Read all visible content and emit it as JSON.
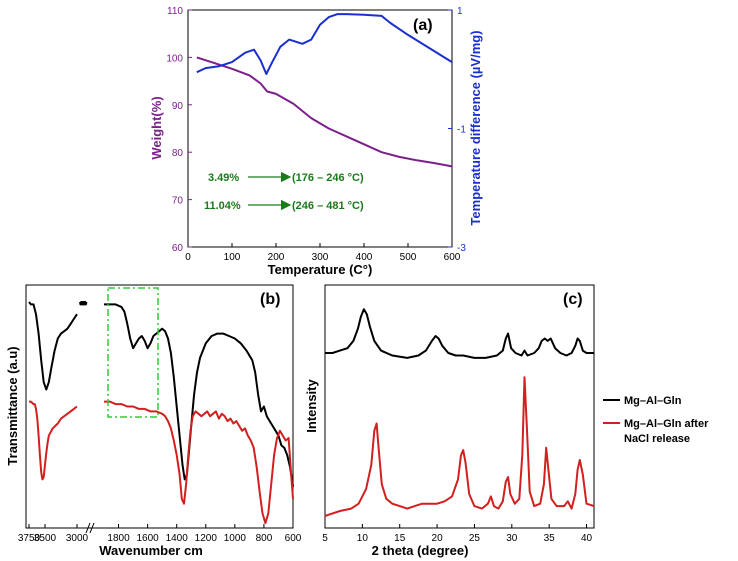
{
  "colors": {
    "purple": "#7b1f8a",
    "blue": "#1a2fd0",
    "green": "#1a7a1a",
    "dash": "#33cc33",
    "black": "#000000",
    "red": "#d21f1f"
  },
  "panel_a": {
    "label": "(a)",
    "xlabel": "Temperature (C°)",
    "ylabel_left": "Weight(%)",
    "ylabel_right": "Temperature difference (µV/mg)",
    "annotations": [
      {
        "pct": "3.49%",
        "range": "(176 – 246 °C)"
      },
      {
        "pct": "11.04%",
        "range": "(246 –  481 °C)"
      }
    ]
  },
  "panel_b": {
    "label": "(b)",
    "xlabel": "Wavenumber cm",
    "ylabel": "Transmittance (a.u)"
  },
  "panel_c": {
    "label": "(c)",
    "xlabel": "2 theta (degree)",
    "ylabel": "Intensity"
  },
  "legend": {
    "items": [
      {
        "label": "Mg–Al–Gln",
        "color": "#000000"
      },
      {
        "label": "Mg–Al–Gln after NaCl release",
        "color": "#d21f1f"
      }
    ]
  },
  "chart_data": [
    {
      "panel": "a",
      "type": "line",
      "xlim": [
        0,
        600
      ],
      "ylim_left": [
        60,
        110
      ],
      "ylim_right": [
        -3,
        1
      ],
      "xticks": [
        0,
        100,
        200,
        300,
        400,
        500,
        600
      ],
      "yticks_left": [
        60,
        70,
        80,
        90,
        100,
        110
      ],
      "yticks_right": [
        -3,
        -1,
        1
      ],
      "series": [
        {
          "axis": "left",
          "color": "#7b1f8a",
          "x": [
            20,
            60,
            100,
            140,
            165,
            180,
            200,
            240,
            280,
            320,
            380,
            440,
            480,
            520,
            560,
            600
          ],
          "y": [
            100,
            98.8,
            97.6,
            96.2,
            94.5,
            92.8,
            92.3,
            90.2,
            87.2,
            85,
            82.5,
            80,
            79,
            78.3,
            77.7,
            77
          ]
        },
        {
          "axis": "right",
          "color": "#1a2fd0",
          "x": [
            20,
            40,
            70,
            100,
            130,
            150,
            165,
            178,
            190,
            210,
            230,
            260,
            280,
            300,
            320,
            340,
            360,
            400,
            440,
            460,
            500,
            550,
            600
          ],
          "y": [
            -0.05,
            0.02,
            0.05,
            0.12,
            0.28,
            0.33,
            0.15,
            -0.08,
            0.1,
            0.38,
            0.5,
            0.43,
            0.5,
            0.75,
            0.88,
            0.93,
            0.93,
            0.92,
            0.9,
            0.78,
            0.58,
            0.35,
            0.12
          ]
        }
      ]
    },
    {
      "panel": "b",
      "type": "line",
      "xticks": [
        "3750",
        "3500",
        "3000",
        "1800",
        "1600",
        "1400",
        "1200",
        "1000",
        "800",
        "600"
      ],
      "series": [
        {
          "name": "Mg–Al–Gln",
          "color": "#000000",
          "segments": [
            {
              "x": [
                3750,
                3720,
                3680,
                3640,
                3600,
                3560,
                3520,
                3480,
                3440,
                3400,
                3350,
                3300,
                3250,
                3200,
                3150,
                3100,
                3050,
                3000
              ],
              "y": [
                0.93,
                0.92,
                0.92,
                0.88,
                0.8,
                0.69,
                0.6,
                0.57,
                0.6,
                0.66,
                0.73,
                0.78,
                0.8,
                0.81,
                0.82,
                0.84,
                0.86,
                0.88
              ]
            },
            {
              "x": [
                2800,
                2780,
                2760,
                2740,
                2720,
                2700,
                2680,
                2660,
                2640,
                2620,
                2600,
                2580,
                2560
              ],
              "y": [
                0.93,
                0.92,
                0.93,
                0.92,
                0.93,
                0.92,
                0.93,
                0.92,
                0.93,
                0.92,
                0.93,
                0.92,
                0.93
              ]
            },
            {
              "x": [
                1900,
                1860,
                1820,
                1780,
                1760,
                1740,
                1720,
                1700,
                1680,
                1660,
                1640,
                1620,
                1600,
                1580,
                1560,
                1540,
                1520,
                1500,
                1480,
                1460,
                1440,
                1420,
                1400,
                1380,
                1360,
                1345,
                1330,
                1315,
                1300,
                1280,
                1260,
                1240,
                1200,
                1160,
                1120,
                1080,
                1040,
                1000,
                960,
                920,
                880,
                860,
                840,
                820,
                800,
                780,
                760,
                740,
                720,
                700,
                680,
                660,
                640,
                620,
                600
              ],
              "y": [
                0.92,
                0.92,
                0.92,
                0.91,
                0.89,
                0.84,
                0.78,
                0.74,
                0.76,
                0.78,
                0.79,
                0.77,
                0.74,
                0.76,
                0.79,
                0.8,
                0.81,
                0.82,
                0.81,
                0.78,
                0.72,
                0.62,
                0.5,
                0.38,
                0.26,
                0.2,
                0.22,
                0.32,
                0.42,
                0.55,
                0.64,
                0.7,
                0.76,
                0.79,
                0.8,
                0.8,
                0.79,
                0.78,
                0.76,
                0.73,
                0.69,
                0.64,
                0.55,
                0.48,
                0.5,
                0.46,
                0.44,
                0.42,
                0.4,
                0.38,
                0.34,
                0.33,
                0.3,
                0.25,
                0.17
              ]
            }
          ]
        },
        {
          "name": "Mg–Al–Gln after NaCl release",
          "color": "#d21f1f",
          "segments": [
            {
              "x": [
                3750,
                3720,
                3680,
                3660,
                3640,
                3620,
                3600,
                3580,
                3560,
                3540,
                3520,
                3500,
                3480,
                3460,
                3440,
                3420,
                3380,
                3340,
                3300,
                3250,
                3200,
                3150,
                3100,
                3050,
                3000
              ],
              "y": [
                0.52,
                0.52,
                0.51,
                0.51,
                0.49,
                0.45,
                0.38,
                0.3,
                0.23,
                0.2,
                0.21,
                0.26,
                0.31,
                0.35,
                0.38,
                0.39,
                0.41,
                0.42,
                0.43,
                0.45,
                0.46,
                0.47,
                0.48,
                0.49,
                0.5
              ]
            },
            {
              "x": [
                1900,
                1860,
                1820,
                1780,
                1740,
                1700,
                1660,
                1620,
                1580,
                1540,
                1500,
                1480,
                1460,
                1440,
                1420,
                1400,
                1380,
                1365,
                1350,
                1335,
                1320,
                1305,
                1290,
                1270,
                1250,
                1230,
                1210,
                1190,
                1170,
                1150,
                1130,
                1110,
                1090,
                1070,
                1050,
                1030,
                1010,
                990,
                970,
                950,
                930,
                910,
                890,
                870,
                850,
                830,
                810,
                790,
                770,
                750,
                730,
                710,
                690,
                670,
                650,
                630,
                610,
                600
              ],
              "y": [
                0.52,
                0.52,
                0.51,
                0.51,
                0.5,
                0.5,
                0.49,
                0.49,
                0.48,
                0.48,
                0.47,
                0.46,
                0.44,
                0.41,
                0.36,
                0.3,
                0.22,
                0.12,
                0.1,
                0.18,
                0.3,
                0.4,
                0.46,
                0.48,
                0.47,
                0.46,
                0.47,
                0.48,
                0.46,
                0.47,
                0.48,
                0.45,
                0.47,
                0.46,
                0.44,
                0.45,
                0.43,
                0.44,
                0.42,
                0.4,
                0.41,
                0.38,
                0.36,
                0.33,
                0.25,
                0.15,
                0.06,
                0.02,
                0.06,
                0.18,
                0.3,
                0.37,
                0.4,
                0.38,
                0.36,
                0.37,
                0.2,
                0.12
              ]
            }
          ]
        }
      ]
    },
    {
      "panel": "c",
      "type": "line",
      "xlim": [
        5,
        41
      ],
      "xticks": [
        5,
        10,
        15,
        20,
        25,
        30,
        35,
        40
      ],
      "series": [
        {
          "name": "Mg–Al–Gln",
          "color": "#000000",
          "x": [
            5,
            6,
            7,
            8,
            8.8,
            9.4,
            9.8,
            10.2,
            10.6,
            11,
            11.6,
            12.5,
            14,
            16,
            17.5,
            18.5,
            19.3,
            19.8,
            20.2,
            20.7,
            21.5,
            22.5,
            23.5,
            25,
            26.5,
            28,
            28.8,
            29.2,
            29.5,
            29.9,
            30.5,
            31.3,
            31.7,
            32.1,
            33,
            33.6,
            34,
            34.4,
            34.8,
            35.2,
            35.8,
            36.5,
            37.3,
            38,
            38.5,
            38.8,
            39.1,
            39.5,
            40,
            41
          ],
          "y": [
            0.72,
            0.72,
            0.73,
            0.74,
            0.77,
            0.82,
            0.87,
            0.9,
            0.88,
            0.83,
            0.77,
            0.73,
            0.71,
            0.7,
            0.71,
            0.73,
            0.77,
            0.79,
            0.78,
            0.75,
            0.72,
            0.71,
            0.71,
            0.7,
            0.7,
            0.71,
            0.73,
            0.78,
            0.8,
            0.74,
            0.72,
            0.71,
            0.73,
            0.71,
            0.72,
            0.74,
            0.77,
            0.78,
            0.77,
            0.78,
            0.74,
            0.72,
            0.71,
            0.72,
            0.75,
            0.78,
            0.77,
            0.73,
            0.72,
            0.72
          ]
        },
        {
          "name": "Mg–Al–Gln after NaCl release",
          "color": "#d21f1f",
          "x": [
            5,
            7,
            8.5,
            9.5,
            10.5,
            11.2,
            11.6,
            11.9,
            12.2,
            12.6,
            13.2,
            14,
            15,
            16,
            17,
            18,
            19,
            20,
            21,
            22,
            22.8,
            23.2,
            23.5,
            23.8,
            24.3,
            25,
            26,
            26.8,
            27.2,
            27.6,
            28.2,
            28.8,
            29.2,
            29.5,
            29.8,
            30.4,
            31,
            31.4,
            31.7,
            32,
            32.4,
            33,
            33.8,
            34.3,
            34.6,
            34.9,
            35.3,
            36,
            37,
            37.5,
            38,
            38.5,
            38.8,
            39.1,
            39.5,
            40,
            41
          ],
          "y": [
            0.05,
            0.07,
            0.08,
            0.1,
            0.16,
            0.26,
            0.4,
            0.43,
            0.32,
            0.18,
            0.12,
            0.1,
            0.09,
            0.08,
            0.09,
            0.1,
            0.1,
            0.1,
            0.11,
            0.13,
            0.2,
            0.3,
            0.32,
            0.27,
            0.14,
            0.09,
            0.08,
            0.1,
            0.13,
            0.09,
            0.08,
            0.11,
            0.19,
            0.21,
            0.14,
            0.1,
            0.12,
            0.3,
            0.62,
            0.42,
            0.15,
            0.09,
            0.1,
            0.18,
            0.33,
            0.24,
            0.12,
            0.09,
            0.09,
            0.11,
            0.08,
            0.14,
            0.24,
            0.28,
            0.22,
            0.1,
            0.09
          ]
        }
      ]
    }
  ]
}
